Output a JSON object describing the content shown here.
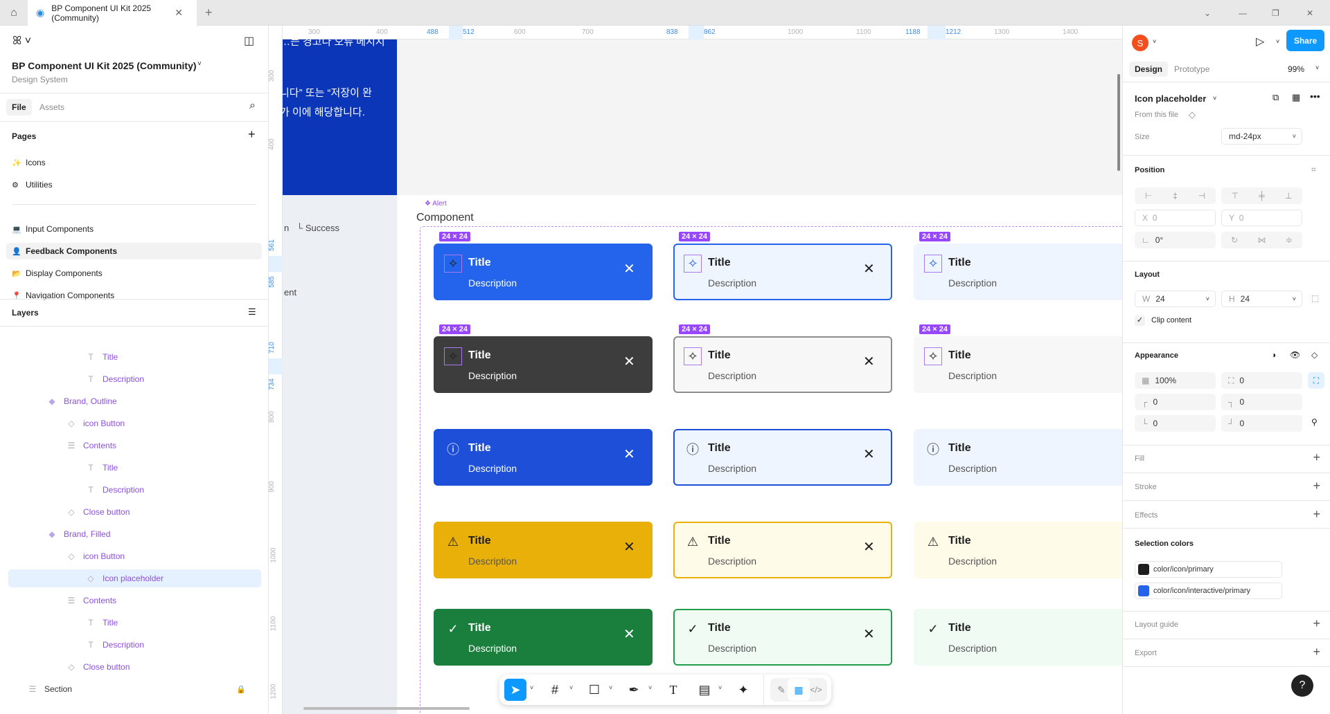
{
  "tabbar": {
    "tab_title": "BP Component UI Kit 2025 (Community)",
    "home_icon": "home-icon",
    "new_tab": "+"
  },
  "file": {
    "name": "BP Component UI Kit 2025 (Community)",
    "subtitle": "Design System"
  },
  "left_tabs": {
    "file": "File",
    "assets": "Assets"
  },
  "pages": {
    "heading": "Pages",
    "items": [
      {
        "emoji": "✨",
        "label": "Icons"
      },
      {
        "emoji": "⚙",
        "label": "Utilities"
      },
      {
        "emoji": "💻",
        "label": "Input Components"
      },
      {
        "emoji": "👤",
        "label": "Feedback Components",
        "active": true
      },
      {
        "emoji": "📂",
        "label": "Display Components"
      },
      {
        "emoji": "📍",
        "label": "Navigation Components"
      }
    ]
  },
  "layers": {
    "heading": "Layers",
    "items": [
      {
        "type": "text",
        "label": "Title",
        "depth": 3
      },
      {
        "type": "text",
        "label": "Description",
        "depth": 3
      },
      {
        "type": "component",
        "label": "Brand, Outline",
        "depth": 1
      },
      {
        "type": "instance",
        "label": "icon Button",
        "depth": 2
      },
      {
        "type": "frame",
        "label": "Contents",
        "depth": 2
      },
      {
        "type": "text",
        "label": "Title",
        "depth": 3
      },
      {
        "type": "text",
        "label": "Description",
        "depth": 3
      },
      {
        "type": "instance",
        "label": "Close button",
        "depth": 2
      },
      {
        "type": "component",
        "label": "Brand, Filled",
        "depth": 1
      },
      {
        "type": "instance",
        "label": "icon Button",
        "depth": 2
      },
      {
        "type": "instance",
        "label": "Icon placeholder",
        "depth": 3,
        "selected": true
      },
      {
        "type": "frame",
        "label": "Contents",
        "depth": 2
      },
      {
        "type": "text",
        "label": "Title",
        "depth": 3
      },
      {
        "type": "text",
        "label": "Description",
        "depth": 3
      },
      {
        "type": "instance",
        "label": "Close button",
        "depth": 2
      },
      {
        "type": "section",
        "label": "Section",
        "depth": 0,
        "locked": true
      }
    ]
  },
  "right": {
    "avatar": "S",
    "share": "Share",
    "tabs": {
      "design": "Design",
      "prototype": "Prototype"
    },
    "zoom": "99%",
    "selection": {
      "name": "Icon placeholder",
      "source": "From this file",
      "size_label": "Size",
      "size_value": "md-24px"
    },
    "position": {
      "heading": "Position",
      "x_label": "X",
      "x": "0",
      "y_label": "Y",
      "y": "0",
      "rotation": "0°"
    },
    "layout": {
      "heading": "Layout",
      "w_label": "W",
      "w": "24",
      "h_label": "H",
      "h": "24",
      "clip": "Clip content",
      "clip_checked": true
    },
    "appearance": {
      "heading": "Appearance",
      "opacity": "100%",
      "radius": "0",
      "tl": "0",
      "tr": "0",
      "bl": "0",
      "br": "0"
    },
    "fill": "Fill",
    "stroke": "Stroke",
    "effects": "Effects",
    "selection_colors": {
      "heading": "Selection colors",
      "items": [
        {
          "name": "color/icon/primary",
          "color": "#1e1e1e"
        },
        {
          "name": "color/icon/interactive/primary",
          "color": "#2563eb"
        }
      ]
    },
    "layout_guide": "Layout guide",
    "export": "Export",
    "help": "?"
  },
  "rulers": {
    "top": [
      {
        "v": "300"
      },
      {
        "v": "400"
      },
      {
        "v": "488",
        "hl": true
      },
      {
        "v": "512",
        "hl": true
      },
      {
        "v": "600"
      },
      {
        "v": "700"
      },
      {
        "v": "838",
        "hl": true
      },
      {
        "v": "862",
        "hl": true
      },
      {
        "v": "1000"
      },
      {
        "v": "1100"
      },
      {
        "v": "1188",
        "hl": true
      },
      {
        "v": "1212",
        "hl": true
      },
      {
        "v": "1300"
      },
      {
        "v": "1400"
      }
    ],
    "left": [
      {
        "v": "300"
      },
      {
        "v": "400"
      },
      {
        "v": "561",
        "hl": true
      },
      {
        "v": "585",
        "hl": true
      },
      {
        "v": "710",
        "hl": true
      },
      {
        "v": "734",
        "hl": true
      },
      {
        "v": "800"
      },
      {
        "v": "900"
      },
      {
        "v": "1000"
      },
      {
        "v": "1100"
      },
      {
        "v": "1200"
      }
    ]
  },
  "canvas": {
    "korean_lines": [
      "…든 경고나 오류 메시지",
      "니다” 또는 “저장이 완",
      "가 이에 해당합니다."
    ],
    "side_texts": [
      "n",
      "└ Success",
      "ent"
    ],
    "frame_label": "Component",
    "component_tag": "Alert",
    "size_badge": "24 × 24",
    "rows": [
      {
        "kind": "brand",
        "icon": "✧",
        "placeholder": true,
        "variants": [
          {
            "bg": "#2463eb",
            "border": "#2463eb",
            "fg": "#ffffff",
            "icon": "#1e1e1e"
          },
          {
            "bg": "#eef5ff",
            "border": "#2463eb",
            "fg": "#1e1e1e",
            "icon": "#2463eb"
          },
          {
            "bg": "#eef5ff",
            "border": "#eef5ff",
            "fg": "#1e1e1e",
            "icon": "#2463eb"
          }
        ]
      },
      {
        "kind": "neutral",
        "icon": "✧",
        "placeholder": true,
        "variants": [
          {
            "bg": "#3d3d3d",
            "border": "#3d3d3d",
            "fg": "#ffffff",
            "icon": "#1e1e1e"
          },
          {
            "bg": "#f7f7f7",
            "border": "#8c8c8c",
            "fg": "#1e1e1e",
            "icon": "#1e1e1e"
          },
          {
            "bg": "#f7f7f7",
            "border": "#f7f7f7",
            "fg": "#1e1e1e",
            "icon": "#1e1e1e"
          }
        ]
      },
      {
        "kind": "info",
        "icon": "ⓘ",
        "variants": [
          {
            "bg": "#1d4fd8",
            "border": "#1d4fd8",
            "fg": "#ffffff",
            "icon": "#ffffff"
          },
          {
            "bg": "#eef5ff",
            "border": "#1d4fd8",
            "fg": "#1e1e1e",
            "icon": "#1e1e1e"
          },
          {
            "bg": "#eef5ff",
            "border": "#eef5ff",
            "fg": "#1e1e1e",
            "icon": "#1e1e1e"
          }
        ]
      },
      {
        "kind": "warning",
        "icon": "⚠",
        "variants": [
          {
            "bg": "#e8b008",
            "border": "#e8b008",
            "fg": "#1e1e1e",
            "icon": "#1e1e1e"
          },
          {
            "bg": "#fefbe8",
            "border": "#e8b008",
            "fg": "#1e1e1e",
            "icon": "#1e1e1e"
          },
          {
            "bg": "#fefbe8",
            "border": "#fefbe8",
            "fg": "#1e1e1e",
            "icon": "#1e1e1e"
          }
        ]
      },
      {
        "kind": "success",
        "icon": "✓",
        "variants": [
          {
            "bg": "#1a7f3c",
            "border": "#1a7f3c",
            "fg": "#ffffff",
            "icon": "#ffffff"
          },
          {
            "bg": "#effbf3",
            "border": "#1f9d4a",
            "fg": "#1e1e1e",
            "icon": "#1e1e1e"
          },
          {
            "bg": "#effbf3",
            "border": "#effbf3",
            "fg": "#1e1e1e",
            "icon": "#1e1e1e"
          }
        ]
      }
    ],
    "card_title": "Title",
    "card_description": "Description"
  },
  "toolbar": {
    "tools": [
      "move",
      "frame",
      "shape",
      "pen",
      "text",
      "comment",
      "ai"
    ],
    "modes": [
      "draw",
      "design",
      "dev"
    ],
    "active_tool": "move",
    "active_mode": "design",
    "accent": "#0d99ff"
  }
}
